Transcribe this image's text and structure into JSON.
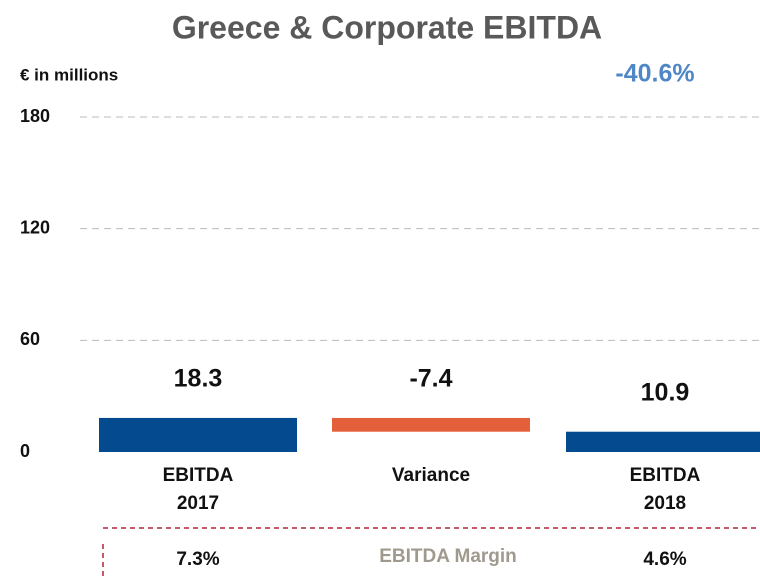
{
  "chart_data": {
    "type": "waterfall",
    "title": "Greece & Corporate EBITDA",
    "y_label": "€ in millions",
    "annotation": "-40.6%",
    "categories": [
      "EBITDA\n2017",
      "Variance",
      "EBITDA\n2018"
    ],
    "values": [
      18.3,
      -7.4,
      10.9
    ],
    "colors": [
      "#034a8f",
      "#e3603a",
      "#034a8f"
    ],
    "ylim": [
      0,
      180
    ],
    "yticks": [
      0,
      60,
      120,
      180
    ],
    "grid": true,
    "margins": {
      "label": "EBITDA Margin",
      "values": [
        7.3,
        null,
        4.6
      ],
      "value_labels": [
        "7.3%",
        null,
        "4.6%"
      ]
    }
  }
}
